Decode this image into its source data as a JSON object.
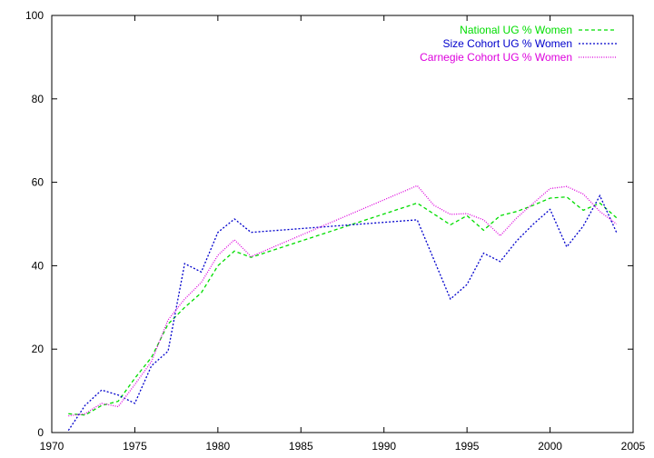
{
  "chart_data": {
    "type": "line",
    "title": "",
    "xlabel": "",
    "ylabel": "",
    "xlim": [
      1970,
      2005
    ],
    "ylim": [
      0,
      100
    ],
    "x_ticks": [
      1970,
      1975,
      1980,
      1985,
      1990,
      1995,
      2000,
      2005
    ],
    "y_ticks": [
      0,
      20,
      40,
      60,
      80,
      100
    ],
    "grid": false,
    "legend_position": "top-right",
    "series": [
      {
        "name": "National UG % Women",
        "color": "#00dd00",
        "dash": "dashed",
        "points": [
          [
            1971,
            4.5
          ],
          [
            1972,
            4.2
          ],
          [
            1973,
            6.5
          ],
          [
            1974,
            7.5
          ],
          [
            1975,
            13
          ],
          [
            1976,
            18
          ],
          [
            1977,
            26
          ],
          [
            1978,
            30
          ],
          [
            1979,
            33.5
          ],
          [
            1980,
            40
          ],
          [
            1981,
            43.5
          ],
          [
            1982,
            42
          ],
          [
            1992,
            55
          ],
          [
            1994,
            49.8
          ],
          [
            1995,
            52
          ],
          [
            1996,
            48.5
          ],
          [
            1997,
            52
          ],
          [
            1998,
            53
          ],
          [
            1999,
            54.5
          ],
          [
            2000,
            56.2
          ],
          [
            2001,
            56.5
          ],
          [
            2002,
            53.3
          ],
          [
            2003,
            55
          ],
          [
            2004,
            51.5
          ]
        ]
      },
      {
        "name": "Size Cohort UG % Women",
        "color": "#0000cc",
        "dash": "dotted",
        "points": [
          [
            1971,
            0.5
          ],
          [
            1972,
            6.5
          ],
          [
            1973,
            10.2
          ],
          [
            1974,
            9
          ],
          [
            1975,
            7
          ],
          [
            1976,
            16
          ],
          [
            1977,
            19.5
          ],
          [
            1978,
            40.5
          ],
          [
            1979,
            38.5
          ],
          [
            1980,
            48
          ],
          [
            1981,
            51.2
          ],
          [
            1982,
            48
          ],
          [
            1992,
            51
          ],
          [
            1994,
            32
          ],
          [
            1995,
            35.5
          ],
          [
            1996,
            43
          ],
          [
            1997,
            41
          ],
          [
            1998,
            46
          ],
          [
            1999,
            50
          ],
          [
            2000,
            53.5
          ],
          [
            2001,
            44.5
          ],
          [
            2002,
            49.5
          ],
          [
            2003,
            56.8
          ],
          [
            2004,
            48
          ]
        ]
      },
      {
        "name": "Carnegie Cohort UG % Women",
        "color": "#dd00dd",
        "dash": "fine-dotted",
        "points": [
          [
            1971,
            4
          ],
          [
            1972,
            4.5
          ],
          [
            1973,
            7
          ],
          [
            1974,
            6.2
          ],
          [
            1975,
            11.5
          ],
          [
            1976,
            17
          ],
          [
            1977,
            27
          ],
          [
            1978,
            32
          ],
          [
            1979,
            36
          ],
          [
            1980,
            42.5
          ],
          [
            1981,
            46.2
          ],
          [
            1982,
            42.2
          ],
          [
            1992,
            59.2
          ],
          [
            1993,
            54.5
          ],
          [
            1994,
            52.3
          ],
          [
            1995,
            52.5
          ],
          [
            1996,
            51
          ],
          [
            1997,
            47.2
          ],
          [
            1998,
            51.5
          ],
          [
            1999,
            55
          ],
          [
            2000,
            58.5
          ],
          [
            2001,
            59
          ],
          [
            2002,
            57.2
          ],
          [
            2003,
            53
          ],
          [
            2004,
            50
          ]
        ]
      }
    ]
  }
}
